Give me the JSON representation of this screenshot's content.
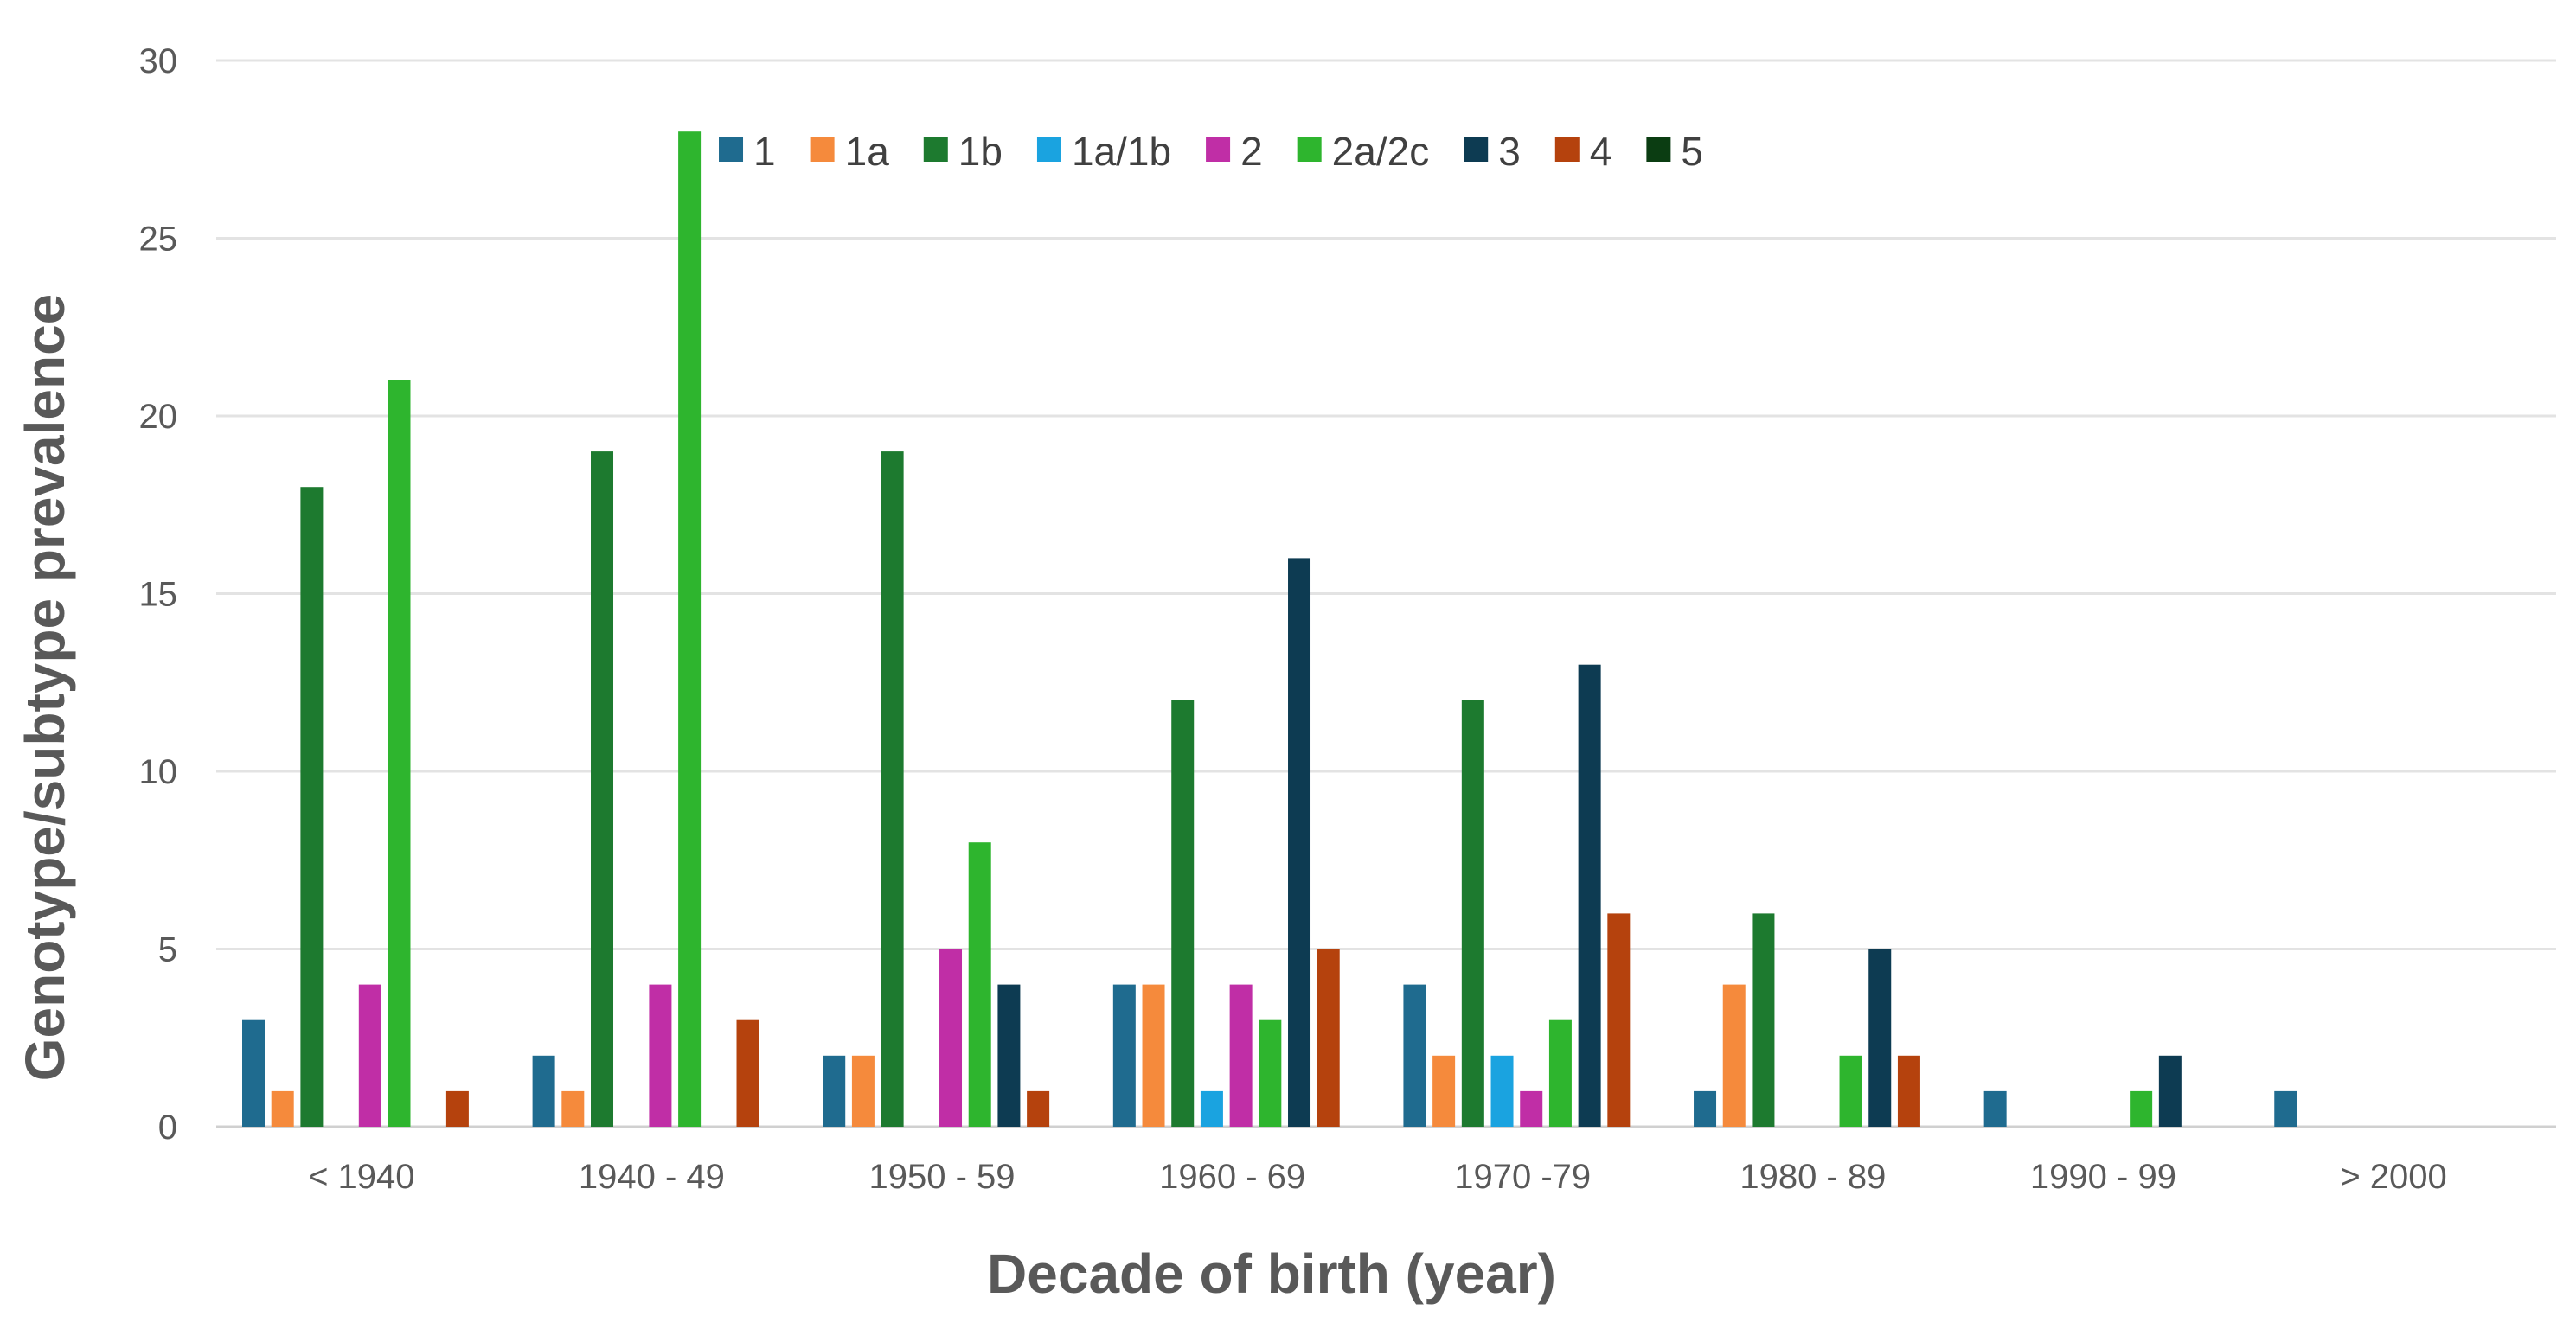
{
  "chart_data": {
    "type": "bar",
    "title": "",
    "xlabel": "Decade of birth (year)",
    "ylabel": "Genotype/subtype prevalence",
    "ylim": [
      0,
      30
    ],
    "yticks": [
      0,
      5,
      10,
      15,
      20,
      25,
      30
    ],
    "grid": true,
    "legend_position": "top-center",
    "categories": [
      "< 1940",
      "1940 - 49",
      "1950 - 59",
      "1960 - 69",
      "1970 -79",
      "1980 - 89",
      "1990 - 99",
      "> 2000"
    ],
    "series": [
      {
        "name": "1",
        "color": "#1f6b8f",
        "values": [
          3,
          2,
          2,
          4,
          4,
          1,
          1,
          1
        ]
      },
      {
        "name": "1a",
        "color": "#f58a3c",
        "values": [
          1,
          1,
          2,
          4,
          2,
          4,
          0,
          0
        ]
      },
      {
        "name": "1b",
        "color": "#1d7a2f",
        "values": [
          18,
          19,
          19,
          12,
          12,
          6,
          0,
          0
        ]
      },
      {
        "name": "1a/1b",
        "color": "#1aa3e0",
        "values": [
          0,
          0,
          0,
          1,
          2,
          0,
          0,
          0
        ]
      },
      {
        "name": "2",
        "color": "#c02ea6",
        "values": [
          4,
          4,
          5,
          4,
          1,
          0,
          0,
          0
        ]
      },
      {
        "name": "2a/2c",
        "color": "#2eb52e",
        "values": [
          21,
          28,
          8,
          3,
          3,
          2,
          1,
          0
        ]
      },
      {
        "name": "3",
        "color": "#0d3b52",
        "values": [
          0,
          0,
          4,
          16,
          13,
          5,
          2,
          0
        ]
      },
      {
        "name": "4",
        "color": "#b5420d",
        "values": [
          1,
          3,
          1,
          5,
          6,
          2,
          0,
          0
        ]
      },
      {
        "name": "5",
        "color": "#0b3d12",
        "values": [
          0,
          0,
          0,
          0,
          0,
          0,
          0,
          0
        ]
      }
    ]
  }
}
